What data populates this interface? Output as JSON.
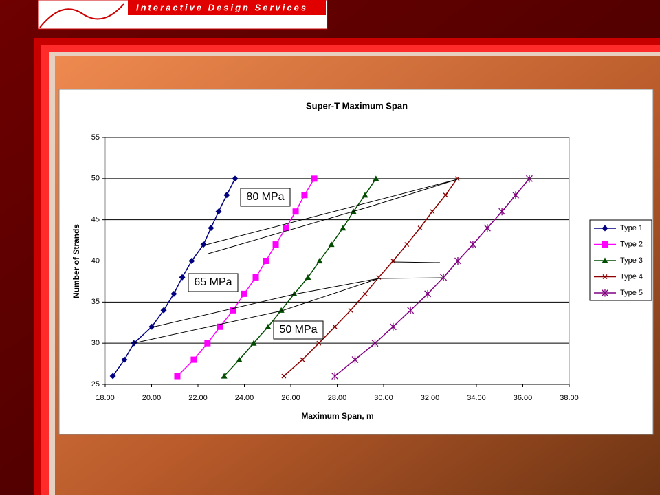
{
  "header": {
    "title": "Interactive Design Services"
  },
  "chart_data": {
    "type": "line",
    "title": "Super-T Maximum Span",
    "x_label": "Maximum Span, m",
    "y_label": "Number of Strands",
    "xlim": [
      18,
      38
    ],
    "xticks": [
      {
        "value": 18,
        "label": "18.00"
      },
      {
        "value": 20,
        "label": "20.00"
      },
      {
        "value": 22,
        "label": "22.00"
      },
      {
        "value": 24,
        "label": "24.00"
      },
      {
        "value": 26,
        "label": "26.00"
      },
      {
        "value": 28,
        "label": "28.00"
      },
      {
        "value": 30,
        "label": "30.00"
      },
      {
        "value": 32,
        "label": "32.00"
      },
      {
        "value": 34,
        "label": "34.00"
      },
      {
        "value": 36,
        "label": "36.00"
      },
      {
        "value": 38,
        "label": "38.00"
      }
    ],
    "ylim": [
      25,
      55
    ],
    "yticks": [
      25,
      30,
      35,
      40,
      45,
      50,
      55
    ],
    "grid": true,
    "legend": "right",
    "annotations": [
      "80 MPa",
      "65 MPa",
      "50 MPa"
    ],
    "series": [
      {
        "name": "Type 1",
        "color": "#000080",
        "marker": "diamond",
        "x": [
          18.33,
          18.83,
          19.24,
          20.01,
          20.52,
          20.96,
          21.32,
          21.73,
          22.24,
          22.56,
          22.89,
          23.24,
          23.6
        ],
        "values": [
          26,
          28,
          30,
          32,
          34,
          36,
          38,
          40,
          42,
          44,
          46,
          48,
          50
        ]
      },
      {
        "name": "Type 2",
        "color": "#ff00ff",
        "marker": "square",
        "x": [
          21.11,
          21.82,
          22.41,
          22.95,
          23.51,
          23.99,
          24.49,
          24.93,
          25.35,
          25.79,
          26.21,
          26.59,
          27.01
        ],
        "values": [
          26,
          28,
          30,
          32,
          34,
          36,
          38,
          40,
          42,
          44,
          46,
          48,
          50
        ]
      },
      {
        "name": "Type 3",
        "color": "#004d00",
        "marker": "triangle",
        "x": [
          23.13,
          23.78,
          24.4,
          25.02,
          25.59,
          26.15,
          26.74,
          27.24,
          27.75,
          28.25,
          28.7,
          29.2,
          29.67
        ],
        "values": [
          26,
          28,
          30,
          32,
          34,
          36,
          38,
          40,
          42,
          44,
          46,
          48,
          50
        ]
      },
      {
        "name": "Type 4",
        "color": "#8b0000",
        "marker": "x",
        "x": [
          25.7,
          26.5,
          27.21,
          27.9,
          28.58,
          29.2,
          29.79,
          30.41,
          31.0,
          31.57,
          32.1,
          32.67,
          33.17
        ],
        "values": [
          26,
          28,
          30,
          32,
          34,
          36,
          38,
          40,
          42,
          44,
          46,
          48,
          50
        ]
      },
      {
        "name": "Type 5",
        "color": "#800080",
        "marker": "asterisk",
        "x": [
          27.9,
          28.77,
          29.63,
          30.41,
          31.16,
          31.9,
          32.58,
          33.2,
          33.85,
          34.47,
          35.1,
          35.69,
          36.28
        ],
        "values": [
          26,
          28,
          30,
          32,
          34,
          36,
          38,
          40,
          42,
          44,
          46,
          48,
          50
        ]
      }
    ]
  }
}
